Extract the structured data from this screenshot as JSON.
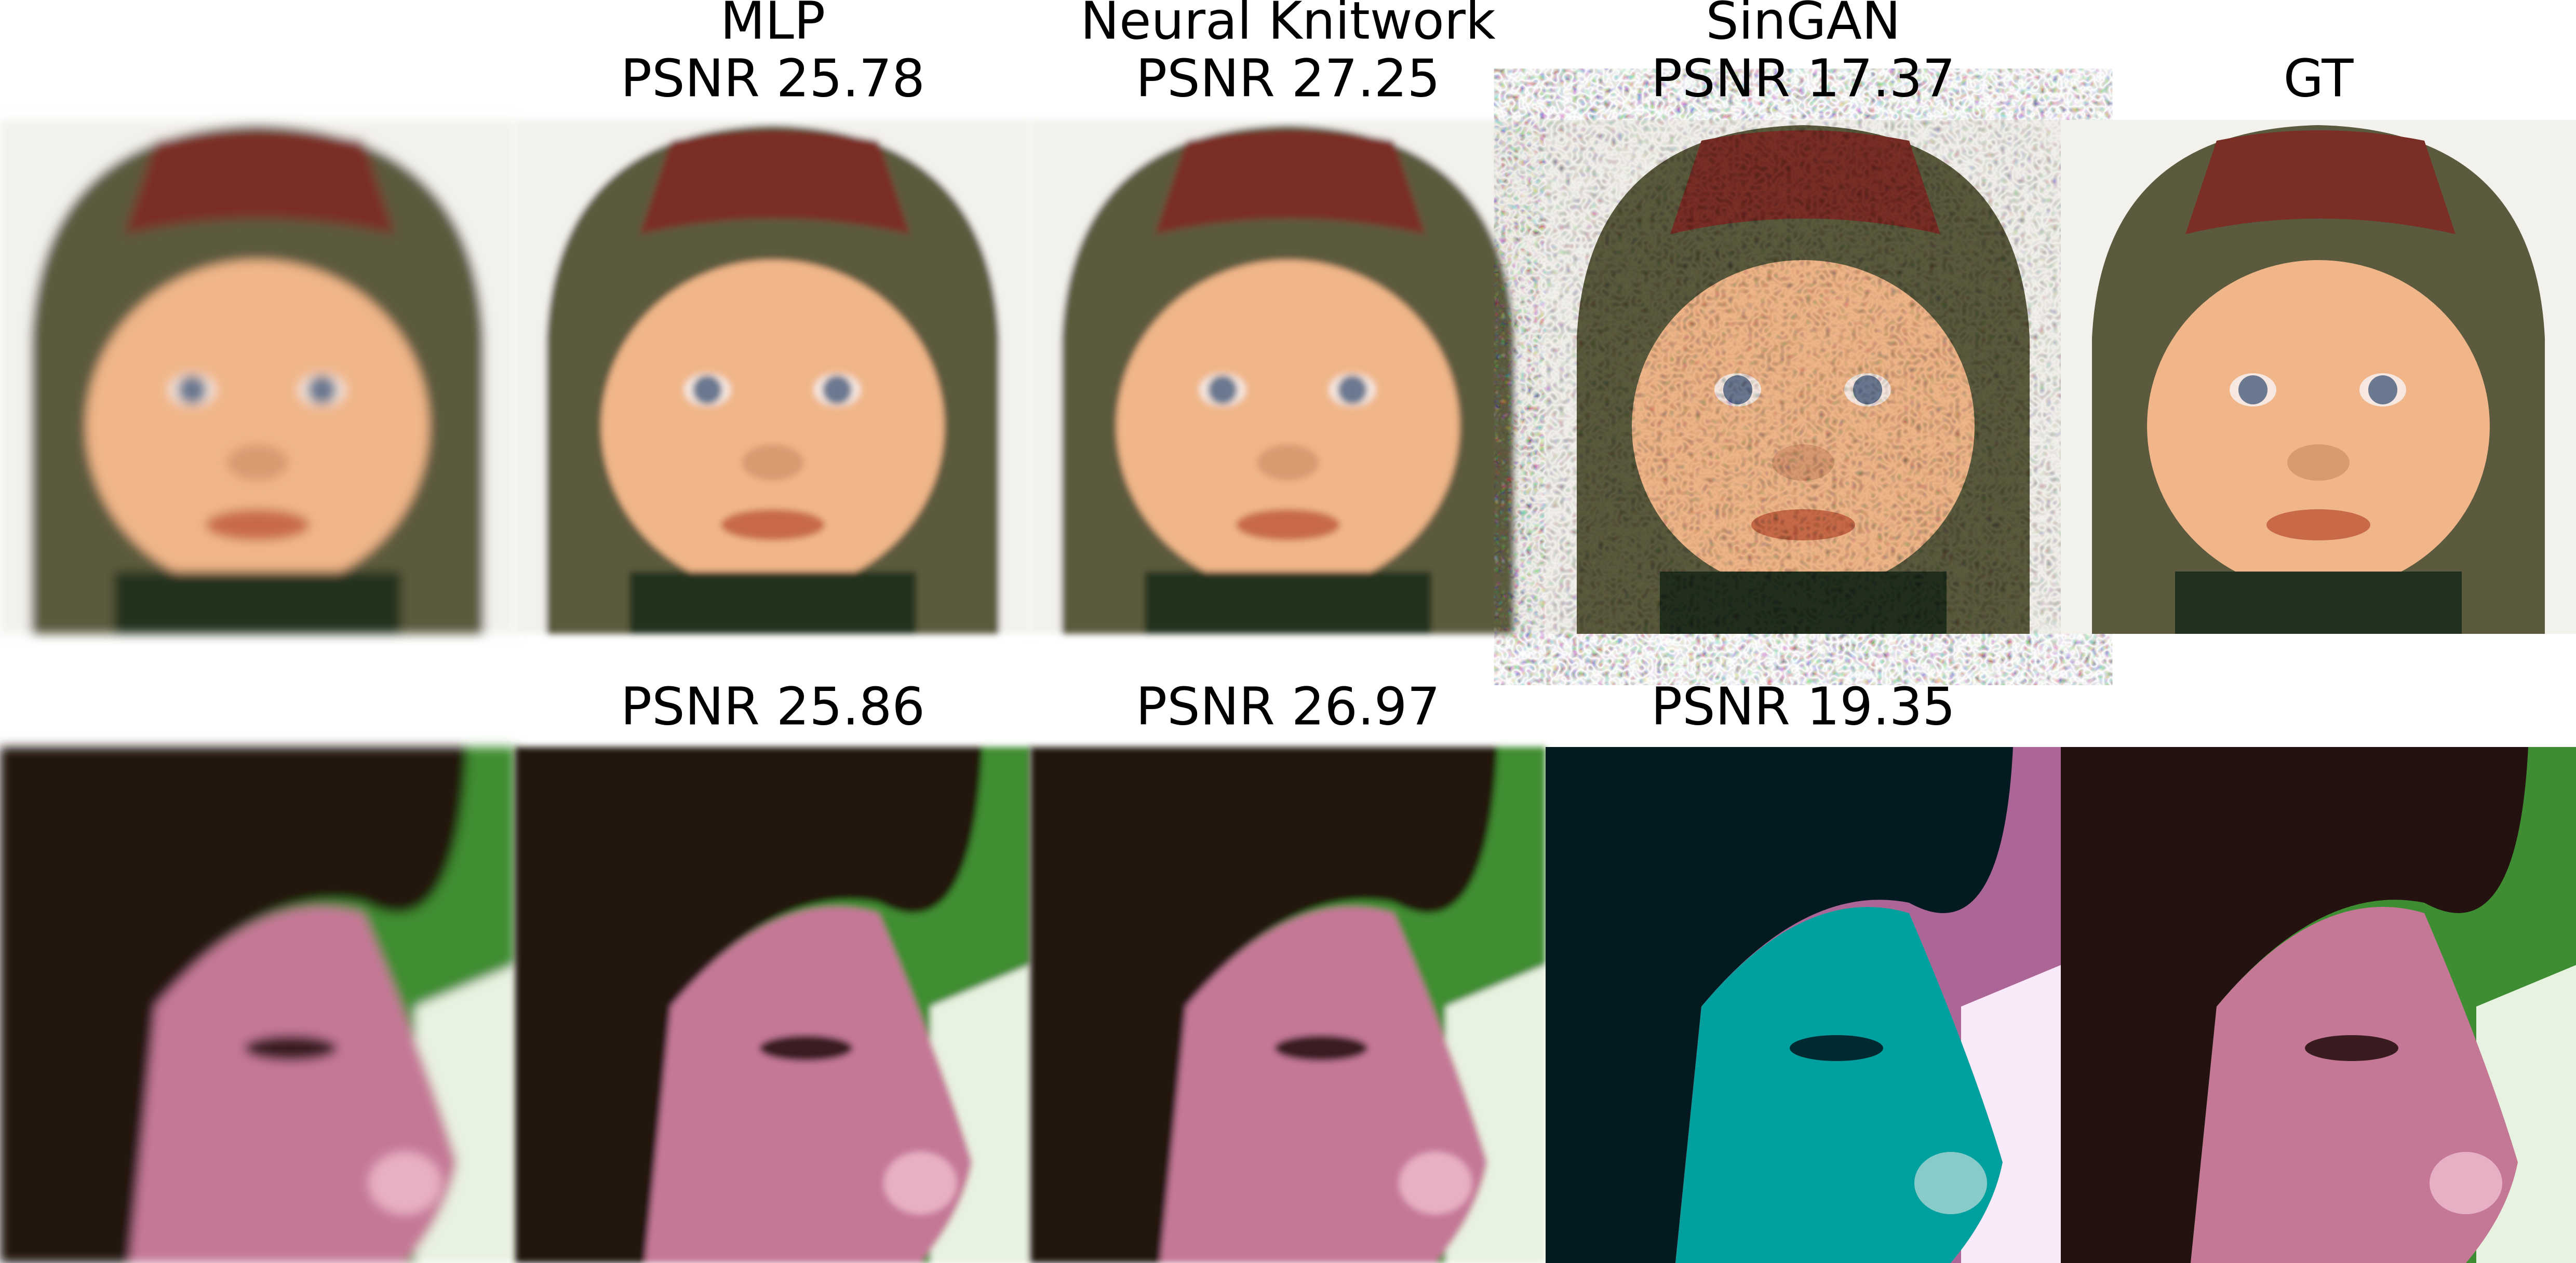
{
  "columns": [
    {
      "name": "MLP",
      "top_psnr": "PSNR 25.78",
      "bottom_psnr": "PSNR 25.86"
    },
    {
      "name": "Neural Knitwork",
      "top_psnr": "PSNR 27.25",
      "bottom_psnr": "PSNR 26.97"
    },
    {
      "name": "SinGAN",
      "top_psnr": "PSNR 17.37",
      "bottom_psnr": "PSNR 19.35"
    },
    {
      "name": "GT"
    }
  ]
}
